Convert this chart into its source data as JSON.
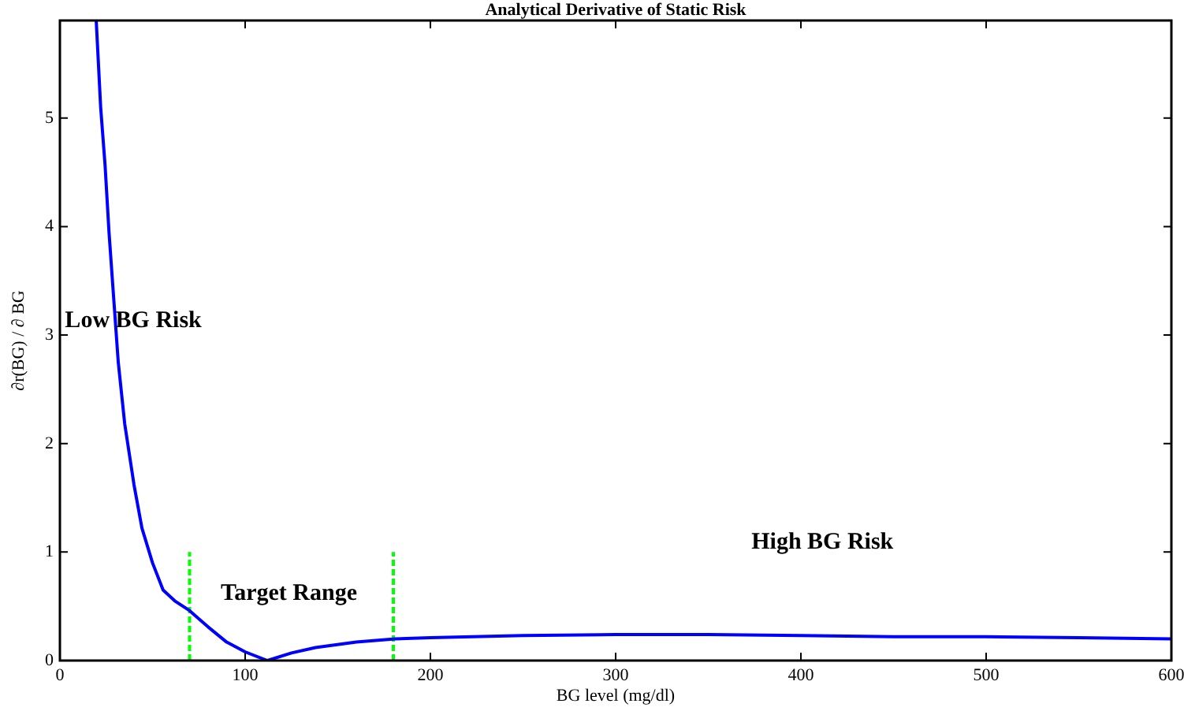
{
  "chart_data": {
    "type": "line",
    "title": "Analytical Derivative of Static Risk",
    "xlabel": "BG level (mg/dl)",
    "ylabel": "∂r(BG) / ∂ BG",
    "xlim": [
      0,
      600
    ],
    "xticks": [
      0,
      100,
      200,
      300,
      400,
      500,
      600
    ],
    "ylim": [
      0,
      5.9
    ],
    "yticks": [
      0,
      1,
      2,
      3,
      4,
      5
    ],
    "marker": "none",
    "series": [
      {
        "color": "#0000ff",
        "x": [
          19.6,
          22,
          24.4,
          26.5,
          28.7,
          31.5,
          35,
          40,
          44.3,
          50,
          55.7,
          62,
          70,
          80,
          90,
          100,
          112,
          125,
          138,
          160,
          181,
          200,
          250,
          300,
          350,
          400,
          450,
          500,
          550,
          600
        ],
        "values": [
          5.9,
          5.1,
          4.56,
          3.95,
          3.42,
          2.75,
          2.18,
          1.62,
          1.22,
          0.9,
          0.65,
          0.55,
          0.46,
          0.31,
          0.17,
          0.08,
          0,
          0.07,
          0.12,
          0.17,
          0.2,
          0.21,
          0.23,
          0.24,
          0.24,
          0.23,
          0.22,
          0.22,
          0.21,
          0.2
        ]
      },
      {
        "color": "#00ff00",
        "line_style": "dashed",
        "x": [
          70,
          70
        ],
        "values": [
          0,
          1
        ]
      },
      {
        "color": "#00ff00",
        "line_style": "dashed",
        "x": [
          180,
          180
        ],
        "values": [
          0,
          1
        ]
      }
    ],
    "annotations": [
      "Low BG Risk",
      "Target Range",
      "High BG Risk"
    ]
  }
}
